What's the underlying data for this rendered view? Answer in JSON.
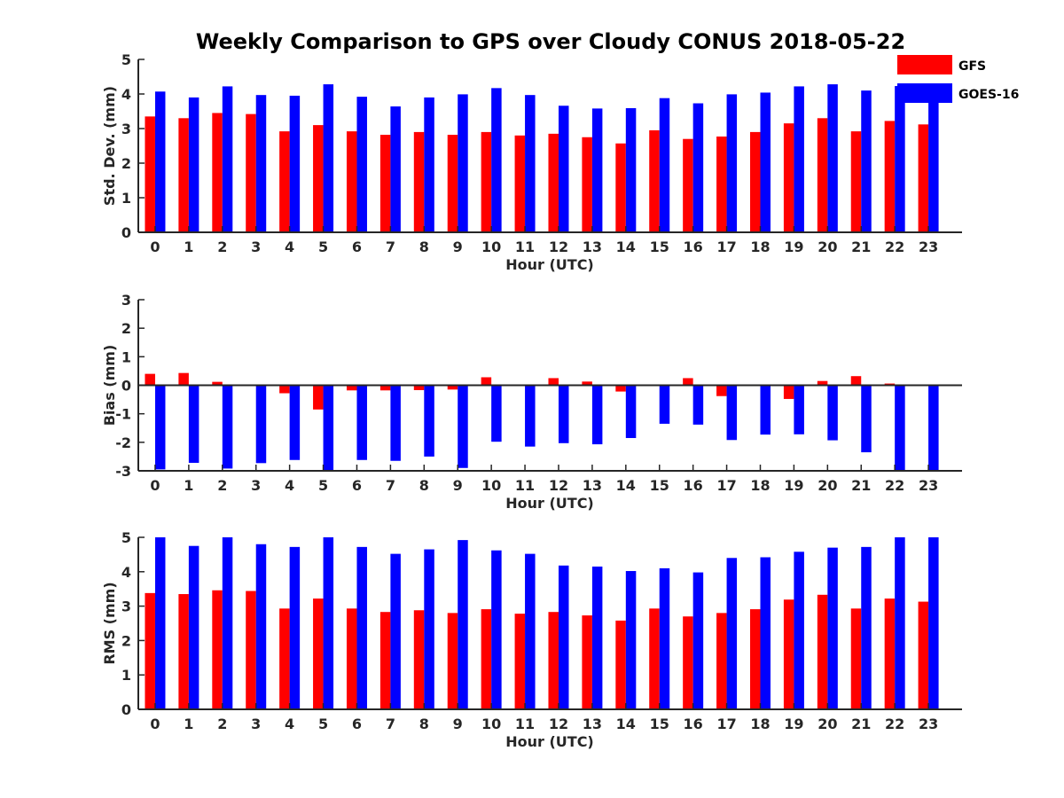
{
  "title": "Weekly Comparison to GPS over Cloudy CONUS 2018-05-22",
  "legend": {
    "placement": "top-right",
    "entries": [
      {
        "label": "GFS",
        "color": "#ff0000"
      },
      {
        "label": "GOES-16",
        "color": "#0000ff"
      }
    ]
  },
  "chart_data": [
    {
      "type": "bar",
      "xlabel": "Hour (UTC)",
      "ylabel": "Std. Dev. (mm)",
      "ylim": [
        0,
        5
      ],
      "yticks": [
        "0",
        "1",
        "2",
        "3",
        "4",
        "5"
      ],
      "categories": [
        "0",
        "1",
        "2",
        "3",
        "4",
        "5",
        "6",
        "7",
        "8",
        "9",
        "10",
        "11",
        "12",
        "13",
        "14",
        "15",
        "16",
        "17",
        "18",
        "19",
        "20",
        "21",
        "22",
        "23"
      ],
      "series": [
        {
          "name": "GFS",
          "color": "#ff0000",
          "values": [
            3.35,
            3.3,
            3.45,
            3.42,
            2.92,
            3.1,
            2.92,
            2.82,
            2.9,
            2.82,
            2.9,
            2.8,
            2.85,
            2.75,
            2.57,
            2.95,
            2.7,
            2.77,
            2.9,
            3.15,
            3.3,
            2.92,
            3.22,
            3.12
          ]
        },
        {
          "name": "GOES-16",
          "color": "#0000ff",
          "values": [
            4.07,
            3.9,
            4.22,
            3.97,
            3.95,
            4.28,
            3.92,
            3.64,
            3.9,
            3.99,
            4.17,
            3.97,
            3.66,
            3.58,
            3.59,
            3.88,
            3.73,
            3.99,
            4.04,
            4.22,
            4.28,
            4.1,
            4.23,
            3.85
          ]
        }
      ]
    },
    {
      "type": "bar",
      "xlabel": "Hour (UTC)",
      "ylabel": "Bias (mm)",
      "ylim": [
        -3,
        3
      ],
      "yticks": [
        "-3",
        "-2",
        "-1",
        "0",
        "1",
        "2",
        "3"
      ],
      "categories": [
        "0",
        "1",
        "2",
        "3",
        "4",
        "5",
        "6",
        "7",
        "8",
        "9",
        "10",
        "11",
        "12",
        "13",
        "14",
        "15",
        "16",
        "17",
        "18",
        "19",
        "20",
        "21",
        "22",
        "23"
      ],
      "series": [
        {
          "name": "GFS",
          "color": "#ff0000",
          "values": [
            0.4,
            0.43,
            0.12,
            0.03,
            -0.28,
            -0.85,
            -0.18,
            -0.18,
            -0.17,
            -0.15,
            0.28,
            0.0,
            0.25,
            0.13,
            -0.22,
            0.0,
            0.25,
            -0.38,
            0.0,
            -0.48,
            0.15,
            0.32,
            0.06,
            -0.02
          ]
        },
        {
          "name": "GOES-16",
          "color": "#0000ff",
          "values": [
            -2.95,
            -2.72,
            -2.92,
            -2.73,
            -2.62,
            -3.0,
            -2.62,
            -2.65,
            -2.5,
            -2.9,
            -1.98,
            -2.15,
            -2.03,
            -2.07,
            -1.85,
            -1.35,
            -1.38,
            -1.92,
            -1.73,
            -1.72,
            -1.93,
            -2.35,
            -2.98,
            -3.0
          ]
        }
      ]
    },
    {
      "type": "bar",
      "xlabel": "Hour (UTC)",
      "ylabel": "RMS (mm)",
      "ylim": [
        0,
        5
      ],
      "yticks": [
        "0",
        "1",
        "2",
        "3",
        "4",
        "5"
      ],
      "categories": [
        "0",
        "1",
        "2",
        "3",
        "4",
        "5",
        "6",
        "7",
        "8",
        "9",
        "10",
        "11",
        "12",
        "13",
        "14",
        "15",
        "16",
        "17",
        "18",
        "19",
        "20",
        "21",
        "22",
        "23"
      ],
      "series": [
        {
          "name": "GFS",
          "color": "#ff0000",
          "values": [
            3.38,
            3.35,
            3.46,
            3.44,
            2.93,
            3.22,
            2.93,
            2.83,
            2.88,
            2.8,
            2.91,
            2.78,
            2.83,
            2.73,
            2.58,
            2.93,
            2.7,
            2.8,
            2.91,
            3.19,
            3.33,
            2.93,
            3.22,
            3.13
          ]
        },
        {
          "name": "GOES-16",
          "color": "#0000ff",
          "values": [
            5.0,
            4.75,
            5.0,
            4.8,
            4.72,
            5.0,
            4.72,
            4.52,
            4.65,
            4.92,
            4.62,
            4.52,
            4.18,
            4.15,
            4.02,
            4.1,
            3.98,
            4.4,
            4.42,
            4.58,
            4.7,
            4.72,
            5.0,
            5.0
          ]
        }
      ]
    }
  ]
}
